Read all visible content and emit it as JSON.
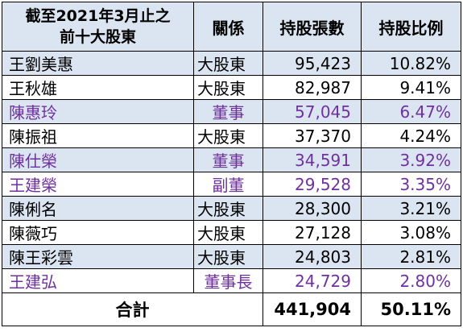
{
  "headers": {
    "title_line1": "截至2021年3月止之",
    "title_line2": "前十大股東",
    "relation": "關係",
    "shares": "持股張數",
    "ratio": "持股比例"
  },
  "rows": [
    {
      "name": "王劉美惠",
      "relation": "大股東",
      "shares": "95,423",
      "ratio": "10.82%"
    },
    {
      "name": "王秋雄",
      "relation": "大股東",
      "shares": "82,987",
      "ratio": "9.41%"
    },
    {
      "name": "陳惠玲",
      "relation": "董事",
      "shares": "57,045",
      "ratio": "6.47%"
    },
    {
      "name": "陳振祖",
      "relation": "大股東",
      "shares": "37,370",
      "ratio": "4.24%"
    },
    {
      "name": "陳仕榮",
      "relation": "董事",
      "shares": "34,591",
      "ratio": "3.92%"
    },
    {
      "name": "王建榮",
      "relation": "副董",
      "shares": "29,528",
      "ratio": "3.35%"
    },
    {
      "name": "陳俐名",
      "relation": "大股東",
      "shares": "28,300",
      "ratio": "3.21%"
    },
    {
      "name": "陳薇巧",
      "relation": "大股東",
      "shares": "27,128",
      "ratio": "3.08%"
    },
    {
      "name": "陳王彩雲",
      "relation": "大股東",
      "shares": "24,803",
      "ratio": "2.81%"
    },
    {
      "name": "王建弘",
      "relation": "董事長",
      "shares": "24,729",
      "ratio": "2.80%"
    }
  ],
  "total": {
    "label": "合計",
    "shares": "441,904",
    "ratio": "50.11%"
  },
  "colors": {
    "header_bg": "#dbe5f1",
    "shaded_row_bg": "#dbe5f1",
    "director_text": "#7030a0"
  }
}
